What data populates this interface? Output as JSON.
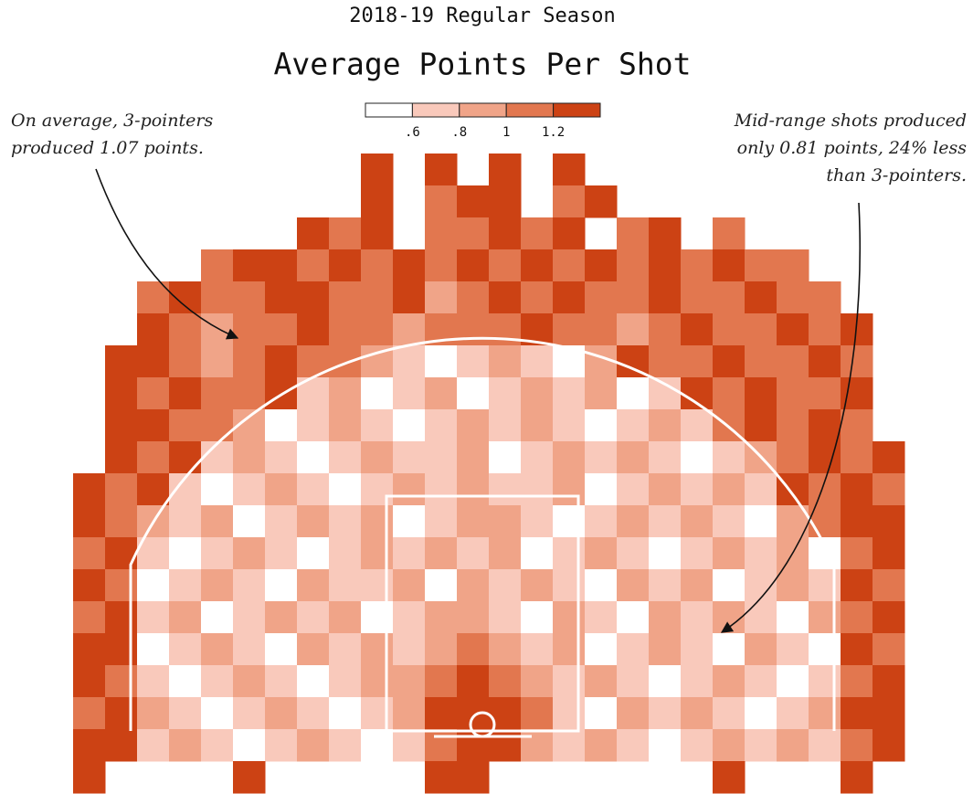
{
  "chart_data": {
    "type": "heatmap",
    "subtitle": "2018-19 Regular Season",
    "title": "Average Points Per Shot",
    "legend": {
      "thresholds": [
        {
          "value": 0.6,
          "label": ".6"
        },
        {
          "value": 0.8,
          "label": ".8"
        },
        1,
        1.2
      ],
      "colors": [
        "#ffffff",
        "#f9c9bb",
        "#f0a488",
        "#e2774f",
        "#cc4214"
      ]
    },
    "annotations": [
      {
        "lines": [
          "On average, 3-pointers",
          "produced 1.07 points."
        ]
      },
      {
        "lines": [
          "Mid-range shots produced",
          "only 0.81 points, 24% less",
          "than 3-pointers."
        ]
      }
    ],
    "z": [
      [
        null,
        null,
        null,
        null,
        null,
        null,
        null,
        null,
        null,
        1.3,
        null,
        1.3,
        null,
        1.3,
        null,
        1.3,
        null,
        null,
        null,
        null,
        null,
        null,
        null,
        null,
        null,
        null
      ],
      [
        null,
        null,
        null,
        null,
        null,
        null,
        null,
        null,
        null,
        1.3,
        null,
        1.1,
        1.3,
        1.3,
        null,
        1.1,
        1.3,
        null,
        null,
        null,
        null,
        null,
        null,
        null,
        null,
        null
      ],
      [
        null,
        null,
        null,
        null,
        null,
        null,
        null,
        1.3,
        1.1,
        1.3,
        null,
        1.1,
        1.1,
        1.3,
        1.1,
        1.3,
        null,
        1.1,
        1.3,
        null,
        1.1,
        null,
        null,
        null,
        null,
        null
      ],
      [
        null,
        null,
        null,
        null,
        1.1,
        1.3,
        1.3,
        1.1,
        1.3,
        1.1,
        1.3,
        1.1,
        1.3,
        1.1,
        1.3,
        1.1,
        1.3,
        1.1,
        1.3,
        1.1,
        1.3,
        1.1,
        1.1,
        null,
        null,
        null
      ],
      [
        null,
        null,
        1.1,
        1.3,
        1.1,
        1.1,
        1.3,
        1.3,
        1.1,
        1.1,
        1.3,
        0.9,
        1.1,
        1.3,
        1.1,
        1.3,
        1.1,
        1.1,
        1.3,
        1.1,
        1.1,
        1.3,
        1.1,
        1.1,
        null,
        null
      ],
      [
        null,
        null,
        1.3,
        1.1,
        0.9,
        1.1,
        1.1,
        1.3,
        1.1,
        1.1,
        0.9,
        1.1,
        1.1,
        1.1,
        1.3,
        1.1,
        1.1,
        0.9,
        1.1,
        1.3,
        1.1,
        1.1,
        1.3,
        1.1,
        1.3,
        null
      ],
      [
        null,
        1.3,
        1.3,
        1.1,
        0.9,
        1.1,
        1.3,
        1.1,
        1.1,
        0.9,
        0.7,
        0.5,
        0.7,
        0.9,
        0.7,
        0.5,
        0.9,
        1.3,
        1.1,
        1.1,
        1.3,
        1.1,
        1.1,
        1.3,
        1.1,
        null
      ],
      [
        null,
        1.3,
        1.1,
        1.3,
        1.1,
        1.1,
        1.3,
        0.7,
        0.9,
        0.5,
        0.7,
        0.9,
        0.5,
        0.7,
        0.9,
        0.7,
        0.9,
        0.5,
        0.7,
        1.3,
        1.1,
        1.3,
        1.1,
        1.1,
        1.3,
        null
      ],
      [
        null,
        1.3,
        1.3,
        1.1,
        1.1,
        0.9,
        0.5,
        0.7,
        0.9,
        0.7,
        0.5,
        0.7,
        0.9,
        0.7,
        0.9,
        0.7,
        0.5,
        0.7,
        0.9,
        0.7,
        1.1,
        1.3,
        1.1,
        1.3,
        1.1,
        null
      ],
      [
        null,
        1.3,
        1.1,
        1.3,
        0.7,
        0.9,
        0.7,
        0.5,
        0.7,
        0.9,
        0.7,
        0.7,
        0.9,
        0.5,
        0.7,
        0.9,
        0.7,
        0.9,
        0.7,
        0.5,
        0.7,
        0.9,
        1.1,
        1.3,
        1.1,
        1.3
      ],
      [
        1.3,
        1.1,
        1.3,
        0.7,
        0.5,
        0.7,
        0.9,
        0.7,
        0.5,
        0.7,
        0.9,
        0.7,
        0.9,
        0.7,
        0.7,
        0.9,
        0.5,
        0.7,
        0.9,
        0.7,
        0.9,
        0.7,
        1.3,
        1.1,
        1.3,
        1.1
      ],
      [
        1.3,
        1.1,
        0.9,
        0.7,
        0.9,
        0.5,
        0.7,
        0.9,
        0.7,
        0.9,
        0.5,
        0.7,
        0.9,
        0.9,
        0.7,
        0.5,
        0.7,
        0.9,
        0.7,
        0.9,
        0.7,
        0.5,
        0.9,
        1.1,
        1.3,
        1.3
      ],
      [
        1.1,
        1.3,
        0.7,
        0.5,
        0.7,
        0.9,
        0.7,
        0.5,
        0.7,
        0.9,
        0.7,
        0.9,
        0.7,
        0.9,
        0.5,
        0.7,
        0.9,
        0.7,
        0.5,
        0.7,
        0.9,
        0.7,
        0.9,
        0.5,
        1.1,
        1.3
      ],
      [
        1.3,
        1.1,
        0.5,
        0.7,
        0.9,
        0.7,
        0.5,
        0.9,
        0.7,
        0.7,
        0.9,
        0.5,
        0.9,
        0.7,
        0.9,
        0.7,
        0.5,
        0.9,
        0.7,
        0.9,
        0.5,
        0.7,
        0.9,
        0.7,
        1.3,
        1.1
      ],
      [
        1.1,
        1.3,
        0.7,
        0.9,
        0.5,
        0.7,
        0.9,
        0.7,
        0.9,
        0.5,
        0.7,
        0.9,
        0.9,
        0.7,
        0.5,
        0.9,
        0.7,
        0.5,
        0.9,
        0.7,
        0.9,
        0.7,
        0.5,
        0.9,
        1.1,
        1.3
      ],
      [
        1.3,
        1.3,
        0.5,
        0.7,
        0.9,
        0.7,
        0.5,
        0.9,
        0.7,
        0.9,
        0.7,
        0.9,
        1.1,
        0.9,
        0.7,
        0.9,
        0.5,
        0.7,
        0.9,
        0.7,
        0.5,
        0.9,
        0.7,
        0.5,
        1.3,
        1.1
      ],
      [
        1.3,
        1.1,
        0.7,
        0.5,
        0.7,
        0.9,
        0.7,
        0.5,
        0.7,
        0.9,
        0.9,
        1.1,
        1.3,
        1.1,
        0.9,
        0.7,
        0.9,
        0.7,
        0.5,
        0.7,
        0.9,
        0.7,
        0.5,
        0.7,
        1.1,
        1.3
      ],
      [
        1.1,
        1.3,
        0.9,
        0.7,
        0.5,
        0.7,
        0.9,
        0.7,
        0.5,
        0.7,
        0.9,
        1.3,
        1.3,
        1.3,
        1.1,
        0.7,
        0.5,
        0.9,
        0.7,
        0.9,
        0.7,
        0.5,
        0.7,
        0.9,
        1.3,
        1.3
      ],
      [
        1.3,
        1.3,
        0.7,
        0.9,
        0.7,
        0.5,
        0.7,
        0.9,
        0.7,
        0.5,
        0.7,
        1.1,
        1.3,
        1.3,
        0.9,
        0.7,
        0.9,
        0.7,
        0.5,
        0.7,
        0.9,
        0.7,
        0.9,
        0.7,
        1.1,
        1.3
      ],
      [
        1.3,
        null,
        null,
        null,
        null,
        1.3,
        null,
        null,
        null,
        null,
        null,
        1.3,
        1.3,
        null,
        null,
        null,
        null,
        null,
        null,
        null,
        1.3,
        null,
        null,
        null,
        1.3,
        null
      ]
    ]
  }
}
